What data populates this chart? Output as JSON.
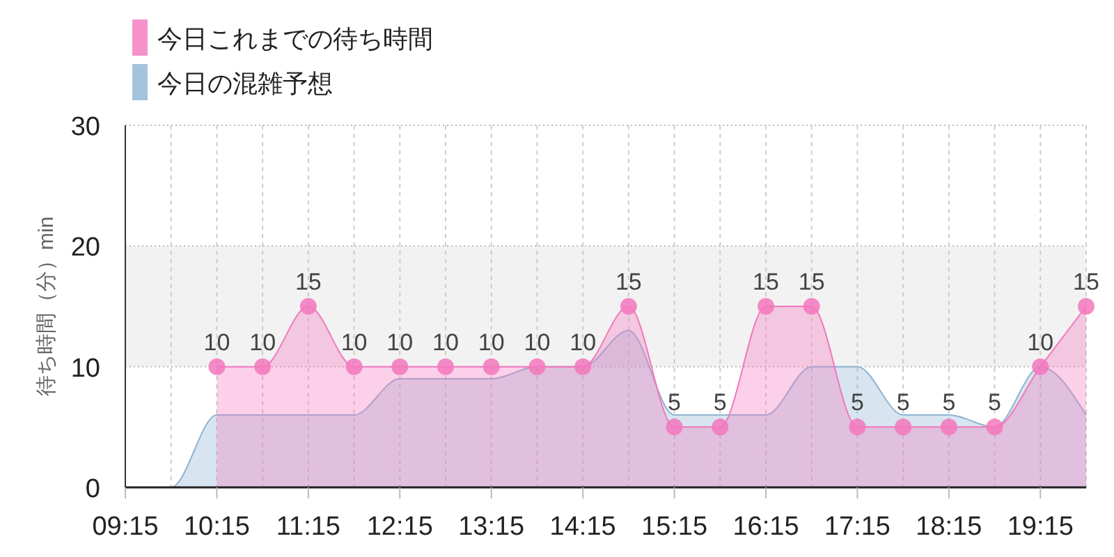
{
  "chart_data": {
    "type": "area",
    "ylabel": "待ち時間（分）min",
    "legend": "top left",
    "grid": true,
    "xlim": [
      9.25,
      19.75
    ],
    "xticks": [
      {
        "value": 9.25,
        "label": "09:15"
      },
      {
        "value": 9.75,
        "label": null
      },
      {
        "value": 10.25,
        "label": "10:15"
      },
      {
        "value": 10.75,
        "label": null
      },
      {
        "value": 11.25,
        "label": "11:15"
      },
      {
        "value": 11.75,
        "label": null
      },
      {
        "value": 12.25,
        "label": "12:15"
      },
      {
        "value": 12.75,
        "label": null
      },
      {
        "value": 13.25,
        "label": "13:15"
      },
      {
        "value": 13.75,
        "label": null
      },
      {
        "value": 14.25,
        "label": "14:15"
      },
      {
        "value": 14.75,
        "label": null
      },
      {
        "value": 15.25,
        "label": "15:15"
      },
      {
        "value": 15.75,
        "label": null
      },
      {
        "value": 16.25,
        "label": "16:15"
      },
      {
        "value": 16.75,
        "label": null
      },
      {
        "value": 17.25,
        "label": "17:15"
      },
      {
        "value": 17.75,
        "label": null
      },
      {
        "value": 18.25,
        "label": "18:15"
      },
      {
        "value": 18.75,
        "label": null
      },
      {
        "value": 19.25,
        "label": "19:15"
      },
      {
        "value": 19.75,
        "label": null
      }
    ],
    "ylim": [
      0,
      30
    ],
    "yticks": [
      0,
      10,
      20,
      30
    ],
    "bands": [
      {
        "axis": "y",
        "from": 10,
        "to": 20,
        "color": "#f2f2f2"
      }
    ],
    "series": [
      {
        "name": "今日の混雑予想",
        "color": "#8fb4d3",
        "marker": "none",
        "x": [
          9.25,
          9.75,
          10.25,
          10.75,
          11.25,
          11.75,
          12.25,
          12.75,
          13.25,
          13.75,
          14.25,
          14.75,
          15.25,
          15.75,
          16.25,
          16.75,
          17.25,
          17.75,
          18.25,
          18.75,
          19.25,
          19.75
        ],
        "values": [
          0,
          0,
          6,
          6,
          6,
          6,
          9,
          9,
          9,
          10,
          10,
          13,
          6,
          6,
          6,
          10,
          10,
          6,
          6,
          5,
          10,
          6
        ]
      },
      {
        "name": "今日これまでの待ち時間",
        "color": "#f377bd",
        "marker": "circle",
        "x": [
          10.25,
          10.75,
          11.25,
          11.75,
          12.25,
          12.75,
          13.25,
          13.75,
          14.25,
          14.75,
          15.25,
          15.75,
          16.25,
          16.75,
          17.25,
          17.75,
          18.25,
          18.75,
          19.25,
          19.75
        ],
        "values": [
          10,
          10,
          15,
          10,
          10,
          10,
          10,
          10,
          10,
          15,
          5,
          5,
          15,
          15,
          5,
          5,
          5,
          5,
          10,
          15
        ],
        "value_labels": [
          "10",
          "10",
          "15",
          "10",
          "10",
          "10",
          "10",
          "10",
          "10",
          "15",
          "5",
          "5",
          "15",
          "15",
          "5",
          "5",
          "5",
          "5",
          "10",
          "15"
        ]
      }
    ]
  }
}
